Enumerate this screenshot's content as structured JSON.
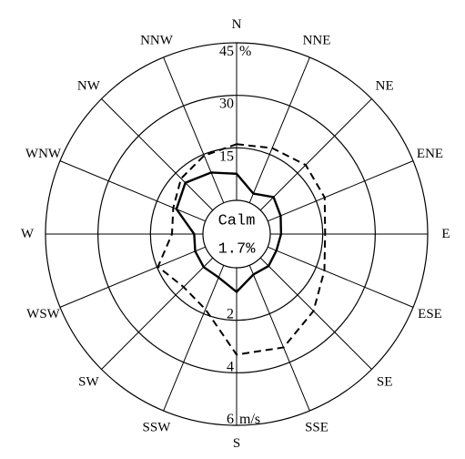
{
  "chart_data": {
    "type": "polar-line",
    "directions": [
      "N",
      "NNE",
      "NE",
      "ENE",
      "E",
      "ESE",
      "SE",
      "SSE",
      "S",
      "SSW",
      "SW",
      "WSW",
      "W",
      "WNW",
      "NW",
      "NNW"
    ],
    "calm": {
      "label": "Calm",
      "value": "1.7%"
    },
    "radial_axes": {
      "frequency": {
        "ticks": [
          15,
          30,
          "45"
        ],
        "unit": "%",
        "max": 45
      },
      "speed": {
        "ticks": [
          2,
          4,
          "6"
        ],
        "unit": "m/s",
        "max": 6
      }
    },
    "series": [
      {
        "style": "solid",
        "axis": "frequency",
        "values": [
          7.6,
          2.9,
          5.3,
          4.0,
          3.1,
          2.7,
          3.3,
          2.9,
          6.9,
          3.8,
          3.7,
          3.2,
          2.5,
          9.0,
          11.1,
          9.4
        ]
      },
      {
        "style": "dashed",
        "axis": "speed",
        "values": [
          2.14,
          2.26,
          2.44,
          2.35,
          2.09,
          2.34,
          2.86,
          3.39,
          3.31,
          1.82,
          1.57,
          1.96,
          1.18,
          1.33,
          1.71,
          1.95
        ]
      }
    ]
  }
}
